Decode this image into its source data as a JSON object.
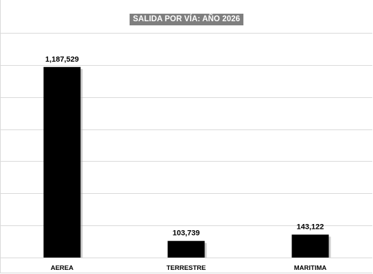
{
  "chart_data": {
    "type": "bar",
    "title": "SALIDA POR VÍA: AÑO 2026",
    "categories": [
      "AEREA",
      "TERRESTRE",
      "MARITIMA"
    ],
    "values": [
      1187529,
      103739,
      143122
    ],
    "value_labels": [
      "1,187,529",
      "103,739",
      "143,122"
    ],
    "xlabel": "",
    "ylabel": "",
    "ylim": [
      0,
      1400000
    ],
    "grid": true,
    "legend": "none",
    "colors": {
      "bar": "#000000",
      "title_background": "#7f7f7f",
      "title_text": "#ffffff",
      "grid": "#d9d9d9"
    }
  }
}
